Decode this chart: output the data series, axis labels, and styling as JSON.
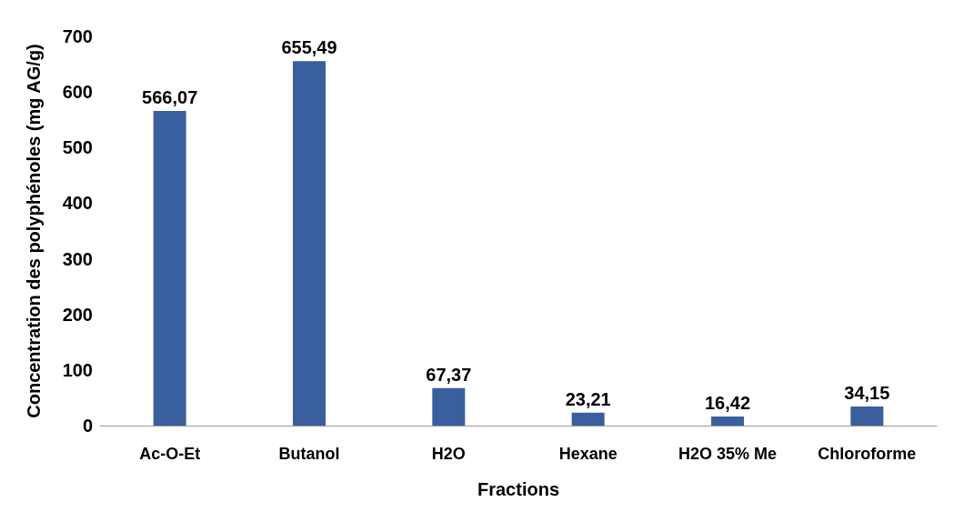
{
  "chart_data": {
    "type": "bar",
    "xlabel": "Fractions",
    "ylabel": "Concentration des polyphénoles (mg AG/g)",
    "categories": [
      "Ac-O-Et",
      "Butanol",
      "H2O",
      "Hexane",
      "H2O 35% Me",
      "Chloroforme"
    ],
    "values": [
      566.07,
      655.49,
      67.37,
      23.21,
      16.42,
      34.15
    ],
    "value_labels": [
      "566,07",
      "655,49",
      "67,37",
      "23,21",
      "16,42",
      "34,15"
    ],
    "color": "#3a5f9e",
    "ylim": [
      0,
      700
    ],
    "yticks": [
      0,
      100,
      200,
      300,
      400,
      500,
      600,
      700
    ],
    "grid": false
  }
}
